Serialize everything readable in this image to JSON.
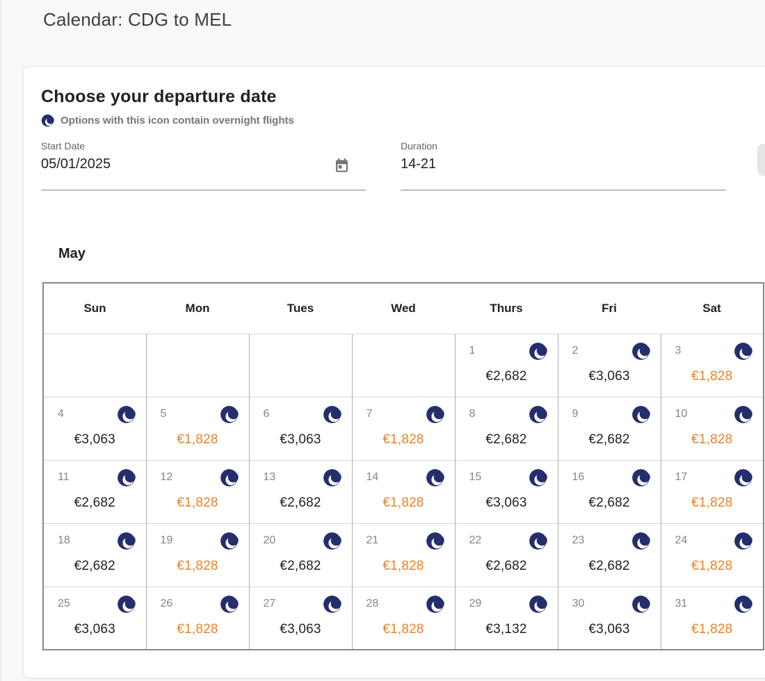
{
  "window": {
    "title": "Calendar: CDG to MEL"
  },
  "panel": {
    "heading": "Choose your departure date",
    "legend_text": "Options with this icon contain overnight flights",
    "start_date": {
      "label": "Start Date",
      "value": "05/01/2025"
    },
    "duration": {
      "label": "Duration",
      "value": "14-21"
    }
  },
  "calendar": {
    "month_label": "May",
    "weekday_headers": [
      "Sun",
      "Mon",
      "Tues",
      "Wed",
      "Thurs",
      "Fri",
      "Sat"
    ],
    "weeks": [
      [
        {
          "day": "",
          "price": "",
          "overnight": false,
          "deal": false
        },
        {
          "day": "",
          "price": "",
          "overnight": false,
          "deal": false
        },
        {
          "day": "",
          "price": "",
          "overnight": false,
          "deal": false
        },
        {
          "day": "",
          "price": "",
          "overnight": false,
          "deal": false
        },
        {
          "day": "1",
          "price": "€2,682",
          "overnight": true,
          "deal": false
        },
        {
          "day": "2",
          "price": "€3,063",
          "overnight": true,
          "deal": false
        },
        {
          "day": "3",
          "price": "€1,828",
          "overnight": true,
          "deal": true
        }
      ],
      [
        {
          "day": "4",
          "price": "€3,063",
          "overnight": true,
          "deal": false
        },
        {
          "day": "5",
          "price": "€1,828",
          "overnight": true,
          "deal": true
        },
        {
          "day": "6",
          "price": "€3,063",
          "overnight": true,
          "deal": false
        },
        {
          "day": "7",
          "price": "€1,828",
          "overnight": true,
          "deal": true
        },
        {
          "day": "8",
          "price": "€2,682",
          "overnight": true,
          "deal": false
        },
        {
          "day": "9",
          "price": "€2,682",
          "overnight": true,
          "deal": false
        },
        {
          "day": "10",
          "price": "€1,828",
          "overnight": true,
          "deal": true
        }
      ],
      [
        {
          "day": "11",
          "price": "€2,682",
          "overnight": true,
          "deal": false
        },
        {
          "day": "12",
          "price": "€1,828",
          "overnight": true,
          "deal": true
        },
        {
          "day": "13",
          "price": "€2,682",
          "overnight": true,
          "deal": false
        },
        {
          "day": "14",
          "price": "€1,828",
          "overnight": true,
          "deal": true
        },
        {
          "day": "15",
          "price": "€3,063",
          "overnight": true,
          "deal": false
        },
        {
          "day": "16",
          "price": "€2,682",
          "overnight": true,
          "deal": false
        },
        {
          "day": "17",
          "price": "€1,828",
          "overnight": true,
          "deal": true
        }
      ],
      [
        {
          "day": "18",
          "price": "€2,682",
          "overnight": true,
          "deal": false
        },
        {
          "day": "19",
          "price": "€1,828",
          "overnight": true,
          "deal": true
        },
        {
          "day": "20",
          "price": "€2,682",
          "overnight": true,
          "deal": false
        },
        {
          "day": "21",
          "price": "€1,828",
          "overnight": true,
          "deal": true
        },
        {
          "day": "22",
          "price": "€2,682",
          "overnight": true,
          "deal": false
        },
        {
          "day": "23",
          "price": "€2,682",
          "overnight": true,
          "deal": false
        },
        {
          "day": "24",
          "price": "€1,828",
          "overnight": true,
          "deal": true
        }
      ],
      [
        {
          "day": "25",
          "price": "€3,063",
          "overnight": true,
          "deal": false
        },
        {
          "day": "26",
          "price": "€1,828",
          "overnight": true,
          "deal": true
        },
        {
          "day": "27",
          "price": "€3,063",
          "overnight": true,
          "deal": false
        },
        {
          "day": "28",
          "price": "€1,828",
          "overnight": true,
          "deal": true
        },
        {
          "day": "29",
          "price": "€3,132",
          "overnight": true,
          "deal": false
        },
        {
          "day": "30",
          "price": "€3,063",
          "overnight": true,
          "deal": false
        },
        {
          "day": "31",
          "price": "€1,828",
          "overnight": true,
          "deal": true
        }
      ]
    ]
  },
  "colors": {
    "overnight_navy": "#252e6d",
    "deal_orange": "#ef8023",
    "price_dark": "#202124"
  }
}
